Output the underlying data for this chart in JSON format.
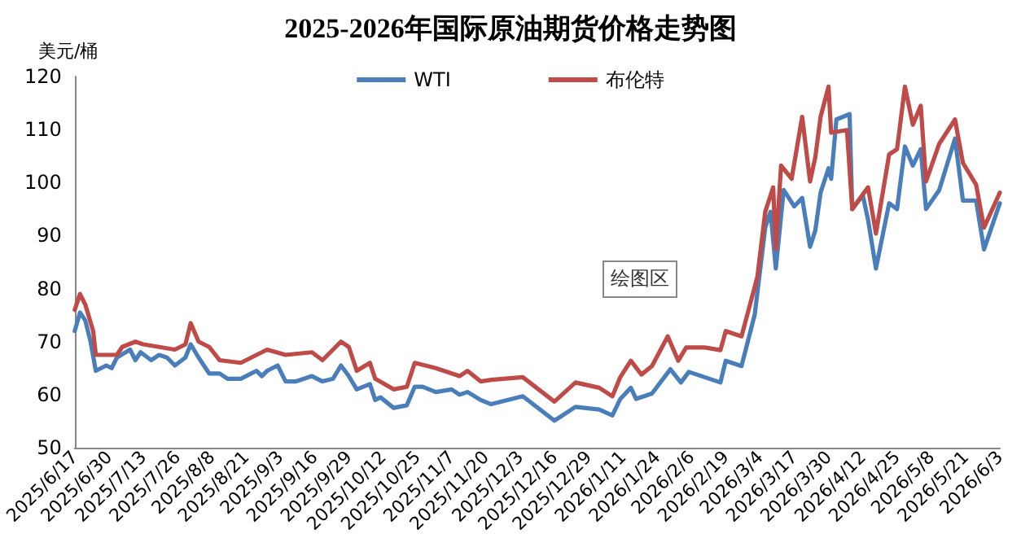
{
  "chart_data": {
    "type": "line",
    "title": "2025-2026年国际原油期货价格走势图",
    "ylabel": "美元/桶",
    "annotations": [
      "绘图区"
    ],
    "xlim": [
      "2025-06-17",
      "2026-06-03"
    ],
    "xticks": [
      {
        "value": "2025-06-17",
        "label": "2025/6/17"
      },
      {
        "value": "2025-06-30",
        "label": "2025/6/30"
      },
      {
        "value": "2025-07-13",
        "label": "2025/7/13"
      },
      {
        "value": "2025-07-26",
        "label": "2025/7/26"
      },
      {
        "value": "2025-08-08",
        "label": "2025/8/8"
      },
      {
        "value": "2025-08-21",
        "label": "2025/8/21"
      },
      {
        "value": "2025-09-03",
        "label": "2025/9/3"
      },
      {
        "value": "2025-09-16",
        "label": "2025/9/16"
      },
      {
        "value": "2025-09-29",
        "label": "2025/9/29"
      },
      {
        "value": "2025-10-12",
        "label": "2025/10/12"
      },
      {
        "value": "2025-10-25",
        "label": "2025/10/25"
      },
      {
        "value": "2025-11-07",
        "label": "2025/11/7"
      },
      {
        "value": "2025-11-20",
        "label": "2025/11/20"
      },
      {
        "value": "2025-12-03",
        "label": "2025/12/3"
      },
      {
        "value": "2025-12-16",
        "label": "2025/12/16"
      },
      {
        "value": "2025-12-29",
        "label": "2025/12/29"
      },
      {
        "value": "2026-01-11",
        "label": "2026/1/11"
      },
      {
        "value": "2026-01-24",
        "label": "2026/1/24"
      },
      {
        "value": "2026-02-06",
        "label": "2026/2/6"
      },
      {
        "value": "2026-02-19",
        "label": "2026/2/19"
      },
      {
        "value": "2026-03-04",
        "label": "2026/3/4"
      },
      {
        "value": "2026-03-17",
        "label": "2026/3/17"
      },
      {
        "value": "2026-03-30",
        "label": "2026/3/30"
      },
      {
        "value": "2026-04-12",
        "label": "2026/4/12"
      },
      {
        "value": "2026-04-25",
        "label": "2026/4/25"
      },
      {
        "value": "2026-05-08",
        "label": "2026/5/8"
      },
      {
        "value": "2026-05-21",
        "label": "2026/5/21"
      },
      {
        "value": "2026-06-03",
        "label": "2026/6/3"
      }
    ],
    "ylim": [
      50,
      120
    ],
    "yticks": [
      50,
      60,
      70,
      80,
      90,
      100,
      110,
      120
    ],
    "grid": false,
    "legend": "top",
    "marker": "none",
    "line_style": "solid",
    "series": [
      {
        "name": "WTI",
        "color": "#4a7ebb",
        "x": [
          "2025-06-17",
          "2025-06-19",
          "2025-06-21",
          "2025-06-23",
          "2025-06-25",
          "2025-06-29",
          "2025-07-01",
          "2025-07-03",
          "2025-07-08",
          "2025-07-10",
          "2025-07-12",
          "2025-07-16",
          "2025-07-19",
          "2025-07-22",
          "2025-07-25",
          "2025-07-29",
          "2025-07-31",
          "2025-08-03",
          "2025-08-07",
          "2025-08-11",
          "2025-08-14",
          "2025-08-19",
          "2025-08-25",
          "2025-08-27",
          "2025-08-29",
          "2025-09-02",
          "2025-09-05",
          "2025-09-09",
          "2025-09-15",
          "2025-09-19",
          "2025-09-23",
          "2025-09-26",
          "2025-09-29",
          "2025-10-02",
          "2025-10-07",
          "2025-10-09",
          "2025-10-11",
          "2025-10-16",
          "2025-10-21",
          "2025-10-24",
          "2025-10-27",
          "2025-11-01",
          "2025-11-07",
          "2025-11-10",
          "2025-11-13",
          "2025-11-18",
          "2025-11-22",
          "2025-12-04",
          "2025-12-16",
          "2025-12-24",
          "2026-01-02",
          "2026-01-07",
          "2026-01-10",
          "2026-01-14",
          "2026-01-16",
          "2026-01-22",
          "2026-01-29",
          "2026-02-02",
          "2026-02-05",
          "2026-02-11",
          "2026-02-17",
          "2026-02-19",
          "2026-02-25",
          "2026-03-02",
          "2026-03-06",
          "2026-03-08",
          "2026-03-10",
          "2026-03-13",
          "2026-03-17",
          "2026-03-20",
          "2026-03-23",
          "2026-03-25",
          "2026-03-27",
          "2026-03-30",
          "2026-03-31",
          "2026-04-02",
          "2026-04-07",
          "2026-04-08",
          "2026-04-12",
          "2026-04-14",
          "2026-04-17",
          "2026-04-22",
          "2026-04-25",
          "2026-04-28",
          "2026-05-01",
          "2026-05-04",
          "2026-05-06",
          "2026-05-11",
          "2026-05-17",
          "2026-05-20",
          "2026-05-25",
          "2026-05-28",
          "2026-06-03"
        ],
        "values": [
          72,
          75.5,
          74,
          70,
          64.5,
          65.5,
          65,
          67,
          68.5,
          66.5,
          68,
          66.5,
          67.5,
          67,
          65.5,
          67,
          69.5,
          67,
          64,
          64,
          63,
          63,
          64.5,
          63.5,
          64.5,
          65.5,
          62.5,
          62.5,
          63.5,
          62.5,
          63,
          65.5,
          63.5,
          61,
          62,
          59,
          59.5,
          57.5,
          58,
          61.5,
          61.5,
          60.5,
          61,
          60,
          60.5,
          59,
          58.2,
          59.7,
          55.1,
          57.7,
          57.2,
          56.1,
          59.2,
          61.3,
          59.2,
          60.2,
          64.8,
          62.3,
          64.3,
          63.3,
          62.3,
          66.4,
          65.4,
          75.1,
          91.5,
          94.5,
          83.8,
          98.6,
          95.5,
          97.1,
          87.9,
          91,
          98.1,
          102.7,
          100.7,
          111.9,
          112.9,
          95,
          97.6,
          93,
          83.8,
          96.1,
          95,
          106.8,
          103.2,
          106.3,
          95,
          98.6,
          108.3,
          96.6,
          96.6,
          87.4,
          96.1
        ]
      },
      {
        "name": "布伦特",
        "color": "#be4b48",
        "x": [
          "2025-06-17",
          "2025-06-19",
          "2025-06-21",
          "2025-06-24",
          "2025-06-25",
          "2025-07-03",
          "2025-07-05",
          "2025-07-10",
          "2025-07-13",
          "2025-07-19",
          "2025-07-25",
          "2025-07-29",
          "2025-07-31",
          "2025-08-03",
          "2025-08-07",
          "2025-08-11",
          "2025-08-19",
          "2025-08-25",
          "2025-08-29",
          "2025-09-05",
          "2025-09-15",
          "2025-09-19",
          "2025-09-26",
          "2025-09-29",
          "2025-10-02",
          "2025-10-07",
          "2025-10-09",
          "2025-10-16",
          "2025-10-21",
          "2025-10-24",
          "2025-11-01",
          "2025-11-07",
          "2025-11-10",
          "2025-11-13",
          "2025-11-18",
          "2025-11-22",
          "2025-12-04",
          "2025-12-16",
          "2025-12-24",
          "2026-01-02",
          "2026-01-07",
          "2026-01-10",
          "2026-01-14",
          "2026-01-18",
          "2026-01-22",
          "2026-01-28",
          "2026-02-01",
          "2026-02-04",
          "2026-02-11",
          "2026-02-17",
          "2026-02-19",
          "2026-02-25",
          "2026-03-03",
          "2026-03-06",
          "2026-03-09",
          "2026-03-10",
          "2026-03-12",
          "2026-03-16",
          "2026-03-20",
          "2026-03-23",
          "2026-03-25",
          "2026-03-27",
          "2026-03-30",
          "2026-03-31",
          "2026-04-06",
          "2026-04-08",
          "2026-04-14",
          "2026-04-17",
          "2026-04-22",
          "2026-04-25",
          "2026-04-28",
          "2026-05-01",
          "2026-05-04",
          "2026-05-06",
          "2026-05-11",
          "2026-05-17",
          "2026-05-20",
          "2026-05-25",
          "2026-05-28",
          "2026-06-03"
        ],
        "values": [
          76,
          79,
          77,
          72,
          67.5,
          67.5,
          69,
          70,
          69.5,
          69,
          68.5,
          69.5,
          73.5,
          70,
          69,
          66.5,
          66,
          67.5,
          68.5,
          67.5,
          68,
          66.5,
          70,
          69,
          64.5,
          66,
          63,
          61,
          61.5,
          66,
          65,
          64,
          63.5,
          64.5,
          62.5,
          62.8,
          63.3,
          58.7,
          62.3,
          61.3,
          59.7,
          63.3,
          66.4,
          63.8,
          65.4,
          71,
          66.4,
          68.9,
          68.9,
          68.4,
          72,
          71,
          82.2,
          94.5,
          99.1,
          87.4,
          103.2,
          100.7,
          112.4,
          100.2,
          104.8,
          112.4,
          118.1,
          109.4,
          109.9,
          95,
          99.1,
          90.4,
          105.3,
          106.3,
          118.1,
          110.9,
          114.5,
          100.2,
          107.3,
          111.9,
          103.7,
          99.6,
          91.5,
          98.1
        ]
      }
    ]
  }
}
